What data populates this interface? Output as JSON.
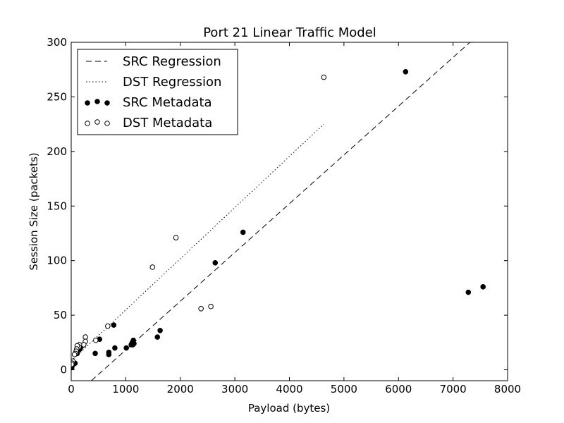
{
  "chart_data": {
    "type": "scatter",
    "title": "Port 21 Linear Traffic Model",
    "xlabel": "Payload (bytes)",
    "ylabel": "Session Size (packets)",
    "xlim": [
      0,
      8000
    ],
    "ylim": [
      -10,
      300
    ],
    "xticks": [
      "0",
      "1000",
      "2000",
      "3000",
      "4000",
      "5000",
      "6000",
      "7000",
      "8000"
    ],
    "yticks": [
      "0",
      "50",
      "100",
      "150",
      "200",
      "250",
      "300"
    ],
    "grid": false,
    "legend_position": "top-left",
    "series": [
      {
        "name": "SRC Regression",
        "kind": "line",
        "style": "dashed",
        "color": "#000000",
        "points": [
          [
            370,
            -10
          ],
          [
            7310,
            300
          ]
        ]
      },
      {
        "name": "DST Regression",
        "kind": "line",
        "style": "dotted",
        "color": "#000000",
        "points": [
          [
            0,
            8
          ],
          [
            4630,
            225
          ]
        ]
      },
      {
        "name": "SRC Metadata",
        "kind": "scatter",
        "marker": "filled-circle",
        "color": "#000000",
        "points": [
          [
            6130,
            273
          ],
          [
            3150,
            126
          ],
          [
            2640,
            98
          ],
          [
            7280,
            71
          ],
          [
            7550,
            76
          ],
          [
            1630,
            36
          ],
          [
            1580,
            30
          ],
          [
            1140,
            27
          ],
          [
            1120,
            25
          ],
          [
            1150,
            24
          ],
          [
            1100,
            23
          ],
          [
            1130,
            23
          ],
          [
            1010,
            20
          ],
          [
            800,
            20
          ],
          [
            780,
            41
          ],
          [
            690,
            16
          ],
          [
            690,
            14
          ],
          [
            520,
            28
          ],
          [
            440,
            15
          ],
          [
            230,
            23
          ],
          [
            180,
            21
          ],
          [
            160,
            19
          ],
          [
            130,
            18
          ],
          [
            120,
            20
          ],
          [
            110,
            15
          ],
          [
            70,
            6
          ],
          [
            40,
            5
          ],
          [
            10,
            2
          ],
          [
            5,
            3
          ]
        ]
      },
      {
        "name": "DST Metadata",
        "kind": "scatter",
        "marker": "open-circle",
        "color": "#000000",
        "points": [
          [
            4630,
            268
          ],
          [
            1920,
            121
          ],
          [
            1490,
            94
          ],
          [
            2560,
            58
          ],
          [
            2380,
            56
          ],
          [
            670,
            40
          ],
          [
            450,
            27
          ],
          [
            260,
            30
          ],
          [
            260,
            26
          ],
          [
            230,
            23
          ],
          [
            150,
            23
          ],
          [
            140,
            21
          ],
          [
            110,
            22
          ],
          [
            100,
            19
          ],
          [
            90,
            17
          ],
          [
            80,
            15
          ],
          [
            60,
            14
          ],
          [
            30,
            8
          ],
          [
            20,
            6
          ],
          [
            10,
            5
          ]
        ]
      }
    ]
  }
}
